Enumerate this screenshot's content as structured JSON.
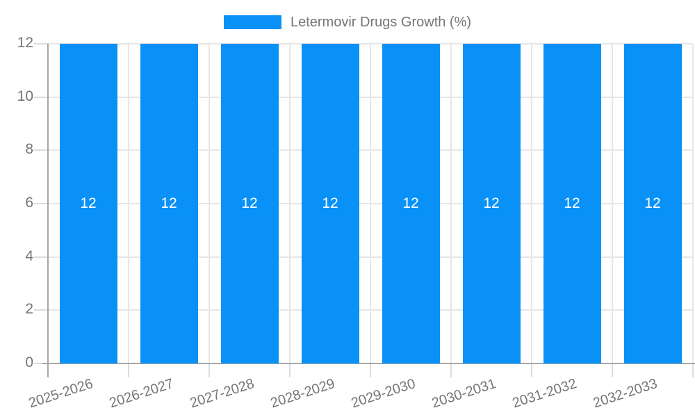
{
  "legend": {
    "label": "Letermovir Drugs Growth (%)"
  },
  "colors": {
    "bar": "#0991F7",
    "text_gray": "#757575",
    "bar_label": "#FFFFFF",
    "gridline": "#E6E6E6",
    "tick": "#DCDCDC",
    "axis": "#A6A6A6"
  },
  "chart_data": {
    "type": "bar",
    "title": "Letermovir Drugs Growth (%)",
    "categories": [
      "2025-2026",
      "2026-2027",
      "2027-2028",
      "2028-2029",
      "2029-2030",
      "2030-2031",
      "2031-2032",
      "2032-2033"
    ],
    "values": [
      12,
      12,
      12,
      12,
      12,
      12,
      12,
      12
    ],
    "bar_labels": [
      "12",
      "12",
      "12",
      "12",
      "12",
      "12",
      "12",
      "12"
    ],
    "xlabel": "",
    "ylabel": "",
    "ylim": [
      0,
      12
    ],
    "yticks": [
      0,
      2,
      4,
      6,
      8,
      10,
      12
    ],
    "grid": true,
    "legend_position": "top",
    "x_label_rotation_deg": -18
  }
}
